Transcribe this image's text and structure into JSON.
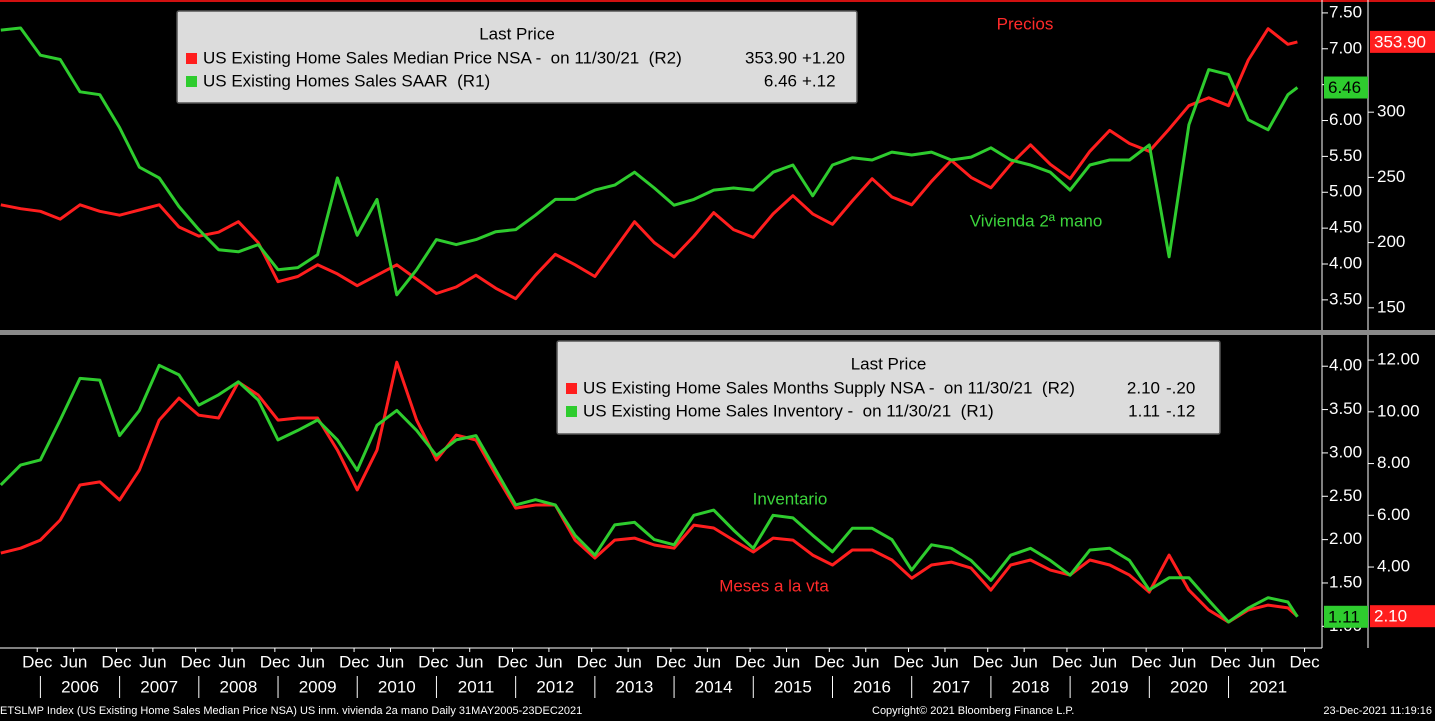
{
  "chart_data": [
    {
      "type": "line",
      "legend_title": "Last Price",
      "x": [
        2005.5,
        2005.75,
        2006,
        2006.25,
        2006.5,
        2006.75,
        2007,
        2007.25,
        2007.5,
        2007.75,
        2008,
        2008.25,
        2008.5,
        2008.75,
        2009,
        2009.25,
        2009.5,
        2009.75,
        2010,
        2010.25,
        2010.5,
        2010.75,
        2011,
        2011.25,
        2011.5,
        2011.75,
        2012,
        2012.25,
        2012.5,
        2012.75,
        2013,
        2013.25,
        2013.5,
        2013.75,
        2014,
        2014.25,
        2014.5,
        2014.75,
        2015,
        2015.25,
        2015.5,
        2015.75,
        2016,
        2016.25,
        2016.5,
        2016.75,
        2017,
        2017.25,
        2017.5,
        2017.75,
        2018,
        2018.25,
        2018.5,
        2018.75,
        2019,
        2019.25,
        2019.5,
        2019.75,
        2020,
        2020.25,
        2020.5,
        2020.75,
        2021,
        2021.25,
        2021.5,
        2021.75,
        2021.87
      ],
      "xlim": [
        2005.49,
        2022.18
      ],
      "ylim": [
        3.08,
        7.68
      ],
      "yticks": [
        {
          "value": 3.5,
          "label": "3.50"
        },
        {
          "value": 4,
          "label": "4.00"
        },
        {
          "value": 4.5,
          "label": "4.50"
        },
        {
          "value": 5,
          "label": "5.00"
        },
        {
          "value": 5.5,
          "label": "5.50"
        },
        {
          "value": 6,
          "label": "6.00"
        },
        {
          "value": 6.5,
          "label": "6.50"
        },
        {
          "value": 7,
          "label": "7.00"
        },
        {
          "value": 7.5,
          "label": "7.50"
        }
      ],
      "y2lim": [
        133,
        386
      ],
      "y2ticks": [
        150,
        200,
        250,
        300
      ],
      "series": [
        {
          "name": "US Existing Home Sales Median Price NSA -  on 11/30/21  (R2)",
          "last_label": "353.90",
          "change": "+1.20",
          "color": "#ff1e1e",
          "axis": "y2",
          "values": [
            229,
            226,
            224,
            218,
            229,
            224,
            221,
            225,
            229,
            212,
            205,
            208,
            216,
            200,
            170,
            174,
            183,
            176,
            167,
            175,
            183,
            172,
            161,
            166,
            175,
            165,
            157,
            175,
            191,
            183,
            174,
            195,
            216,
            200,
            189,
            205,
            223,
            210,
            204,
            222,
            236,
            222,
            214,
            232,
            249,
            235,
            229,
            247,
            263,
            250,
            242,
            260,
            275,
            260,
            249,
            270,
            286,
            276,
            270,
            287,
            305,
            311,
            305,
            340,
            364,
            352,
            353.9
          ]
        },
        {
          "name": "US Existing Homes Sales SAAR  (R1)",
          "last_label": "6.46",
          "change": "+.12",
          "color": "#2ecc2e",
          "values": [
            7.26,
            7.29,
            6.91,
            6.85,
            6.4,
            6.36,
            5.9,
            5.35,
            5.2,
            4.8,
            4.48,
            4.2,
            4.17,
            4.27,
            3.92,
            3.95,
            4.13,
            5.2,
            4.4,
            4.9,
            3.57,
            3.92,
            4.34,
            4.27,
            4.34,
            4.45,
            4.48,
            4.68,
            4.9,
            4.9,
            5.03,
            5.1,
            5.28,
            5.06,
            4.82,
            4.9,
            5.03,
            5.06,
            5.03,
            5.28,
            5.38,
            4.95,
            5.38,
            5.48,
            5.45,
            5.56,
            5.52,
            5.56,
            5.45,
            5.49,
            5.62,
            5.45,
            5.38,
            5.28,
            5.03,
            5.38,
            5.45,
            5.45,
            5.66,
            4.1,
            5.94,
            6.71,
            6.64,
            6.01,
            5.87,
            6.36,
            6.46
          ]
        }
      ],
      "annotations": [
        {
          "text": "Precios",
          "color": "#ff2a2a"
        },
        {
          "text": "Vivienda 2ª mano",
          "color": "#3cd43c"
        }
      ]
    },
    {
      "type": "line",
      "legend_title": "Last Price",
      "x": [
        2005.5,
        2005.75,
        2006,
        2006.25,
        2006.5,
        2006.75,
        2007,
        2007.25,
        2007.5,
        2007.75,
        2008,
        2008.25,
        2008.5,
        2008.75,
        2009,
        2009.25,
        2009.5,
        2009.75,
        2010,
        2010.25,
        2010.5,
        2010.75,
        2011,
        2011.25,
        2011.5,
        2011.75,
        2012,
        2012.25,
        2012.5,
        2012.75,
        2013,
        2013.25,
        2013.5,
        2013.75,
        2014,
        2014.25,
        2014.5,
        2014.75,
        2015,
        2015.25,
        2015.5,
        2015.75,
        2016,
        2016.25,
        2016.5,
        2016.75,
        2017,
        2017.25,
        2017.5,
        2017.75,
        2018,
        2018.25,
        2018.5,
        2018.75,
        2019,
        2019.25,
        2019.5,
        2019.75,
        2020,
        2020.25,
        2020.5,
        2020.75,
        2021,
        2021.25,
        2021.5,
        2021.75,
        2021.87
      ],
      "xlim": [
        2005.49,
        2022.18
      ],
      "xticks": [
        {
          "value": 2005.96,
          "label": "Dec"
        },
        {
          "value": 2006.42,
          "label": "Jun"
        },
        {
          "value": 2006.96,
          "label": "Dec"
        },
        {
          "value": 2007.42,
          "label": "Jun"
        },
        {
          "value": 2007.96,
          "label": "Dec"
        },
        {
          "value": 2008.42,
          "label": "Jun"
        },
        {
          "value": 2008.96,
          "label": "Dec"
        },
        {
          "value": 2009.42,
          "label": "Jun"
        },
        {
          "value": 2009.96,
          "label": "Dec"
        },
        {
          "value": 2010.42,
          "label": "Jun"
        },
        {
          "value": 2010.96,
          "label": "Dec"
        },
        {
          "value": 2011.42,
          "label": "Jun"
        },
        {
          "value": 2011.96,
          "label": "Dec"
        },
        {
          "value": 2012.42,
          "label": "Jun"
        },
        {
          "value": 2012.96,
          "label": "Dec"
        },
        {
          "value": 2013.42,
          "label": "Jun"
        },
        {
          "value": 2013.96,
          "label": "Dec"
        },
        {
          "value": 2014.42,
          "label": "Jun"
        },
        {
          "value": 2014.96,
          "label": "Dec"
        },
        {
          "value": 2015.42,
          "label": "Jun"
        },
        {
          "value": 2015.96,
          "label": "Dec"
        },
        {
          "value": 2016.42,
          "label": "Jun"
        },
        {
          "value": 2016.96,
          "label": "Dec"
        },
        {
          "value": 2017.42,
          "label": "Jun"
        },
        {
          "value": 2017.96,
          "label": "Dec"
        },
        {
          "value": 2018.42,
          "label": "Jun"
        },
        {
          "value": 2018.96,
          "label": "Dec"
        },
        {
          "value": 2019.42,
          "label": "Jun"
        },
        {
          "value": 2019.96,
          "label": "Dec"
        },
        {
          "value": 2020.42,
          "label": "Jun"
        },
        {
          "value": 2020.96,
          "label": "Dec"
        },
        {
          "value": 2021.42,
          "label": "Jun"
        },
        {
          "value": 2021.96,
          "label": "Dec"
        }
      ],
      "year_ticks": [
        {
          "value": 2006.5,
          "label": "2006"
        },
        {
          "value": 2007.5,
          "label": "2007"
        },
        {
          "value": 2008.5,
          "label": "2008"
        },
        {
          "value": 2009.5,
          "label": "2009"
        },
        {
          "value": 2010.5,
          "label": "2010"
        },
        {
          "value": 2011.5,
          "label": "2011"
        },
        {
          "value": 2012.5,
          "label": "2012"
        },
        {
          "value": 2013.5,
          "label": "2013"
        },
        {
          "value": 2014.5,
          "label": "2014"
        },
        {
          "value": 2015.5,
          "label": "2015"
        },
        {
          "value": 2016.5,
          "label": "2016"
        },
        {
          "value": 2017.5,
          "label": "2017"
        },
        {
          "value": 2018.5,
          "label": "2018"
        },
        {
          "value": 2019.5,
          "label": "2019"
        },
        {
          "value": 2020.5,
          "label": "2020"
        },
        {
          "value": 2021.5,
          "label": "2021"
        }
      ],
      "ylim": [
        0.75,
        4.36
      ],
      "yticks": [
        {
          "value": 1,
          "label": "1.00"
        },
        {
          "value": 1.5,
          "label": "1.50"
        },
        {
          "value": 2,
          "label": "2.00"
        },
        {
          "value": 2.5,
          "label": "2.50"
        },
        {
          "value": 3,
          "label": "3.00"
        },
        {
          "value": 3.5,
          "label": "3.50"
        },
        {
          "value": 4,
          "label": "4.00"
        }
      ],
      "y2lim": [
        0.87,
        12.97
      ],
      "y2ticks": [
        {
          "value": 4,
          "label": "4.00"
        },
        {
          "value": 6,
          "label": "6.00"
        },
        {
          "value": 8,
          "label": "8.00"
        },
        {
          "value": 10,
          "label": "10.00"
        },
        {
          "value": 12,
          "label": "12.00"
        }
      ],
      "series": [
        {
          "name": "US Existing Home Sales Months Supply NSA -  on 11/30/21  (R2)",
          "last_label": "2.10",
          "change": "-.20",
          "color": "#ff1e1e",
          "axis": "y2",
          "values": [
            4.54,
            4.73,
            5.04,
            5.82,
            7.17,
            7.29,
            6.59,
            7.75,
            9.68,
            10.53,
            9.87,
            9.76,
            11.15,
            10.65,
            9.68,
            9.76,
            9.76,
            8.52,
            6.98,
            8.52,
            11.92,
            9.68,
            8.14,
            9.1,
            8.91,
            7.56,
            6.28,
            6.4,
            6.4,
            5.04,
            4.35,
            5.04,
            5.12,
            4.85,
            4.73,
            5.62,
            5.51,
            5.04,
            4.58,
            5.12,
            5.04,
            4.46,
            4.08,
            4.66,
            4.66,
            4.27,
            3.57,
            4.08,
            4.19,
            3.96,
            3.11,
            4.08,
            4.27,
            3.88,
            3.69,
            4.27,
            4.08,
            3.69,
            3.03,
            4.46,
            3.11,
            2.34,
            1.87,
            2.34,
            2.53,
            2.42,
            2.1
          ]
        },
        {
          "name": "US Existing Home Sales Inventory -  on 11/30/21  (R1)",
          "last_label": "1.11",
          "change": "-.12",
          "color": "#2ecc2e",
          "values": [
            2.63,
            2.86,
            2.92,
            3.38,
            3.86,
            3.84,
            3.2,
            3.49,
            4.01,
            3.9,
            3.55,
            3.67,
            3.82,
            3.61,
            3.15,
            3.26,
            3.38,
            3.15,
            2.8,
            3.32,
            3.49,
            3.26,
            2.97,
            3.15,
            3.2,
            2.8,
            2.4,
            2.46,
            2.4,
            2.05,
            1.82,
            2.17,
            2.2,
            2.0,
            1.94,
            2.28,
            2.34,
            2.11,
            1.9,
            2.28,
            2.25,
            2.05,
            1.86,
            2.13,
            2.13,
            2.0,
            1.65,
            1.94,
            1.9,
            1.76,
            1.53,
            1.82,
            1.9,
            1.76,
            1.59,
            1.88,
            1.9,
            1.76,
            1.42,
            1.56,
            1.56,
            1.3,
            1.05,
            1.21,
            1.33,
            1.28,
            1.11
          ]
        }
      ],
      "annotations": [
        {
          "text": "Inventario",
          "color": "#3cd43c"
        },
        {
          "text": "Meses a la vta",
          "color": "#ff2a2a"
        }
      ]
    }
  ],
  "footer": {
    "source": "ETSLMP Index (US Existing Home Sales Median Price NSA) US inm. vivienda 2a mano  Daily 31MAY2005-23DEC2021",
    "copyright": "Copyright© 2021 Bloomberg Finance L.P.",
    "timestamp": "23-Dec-2021 11:19:16"
  }
}
